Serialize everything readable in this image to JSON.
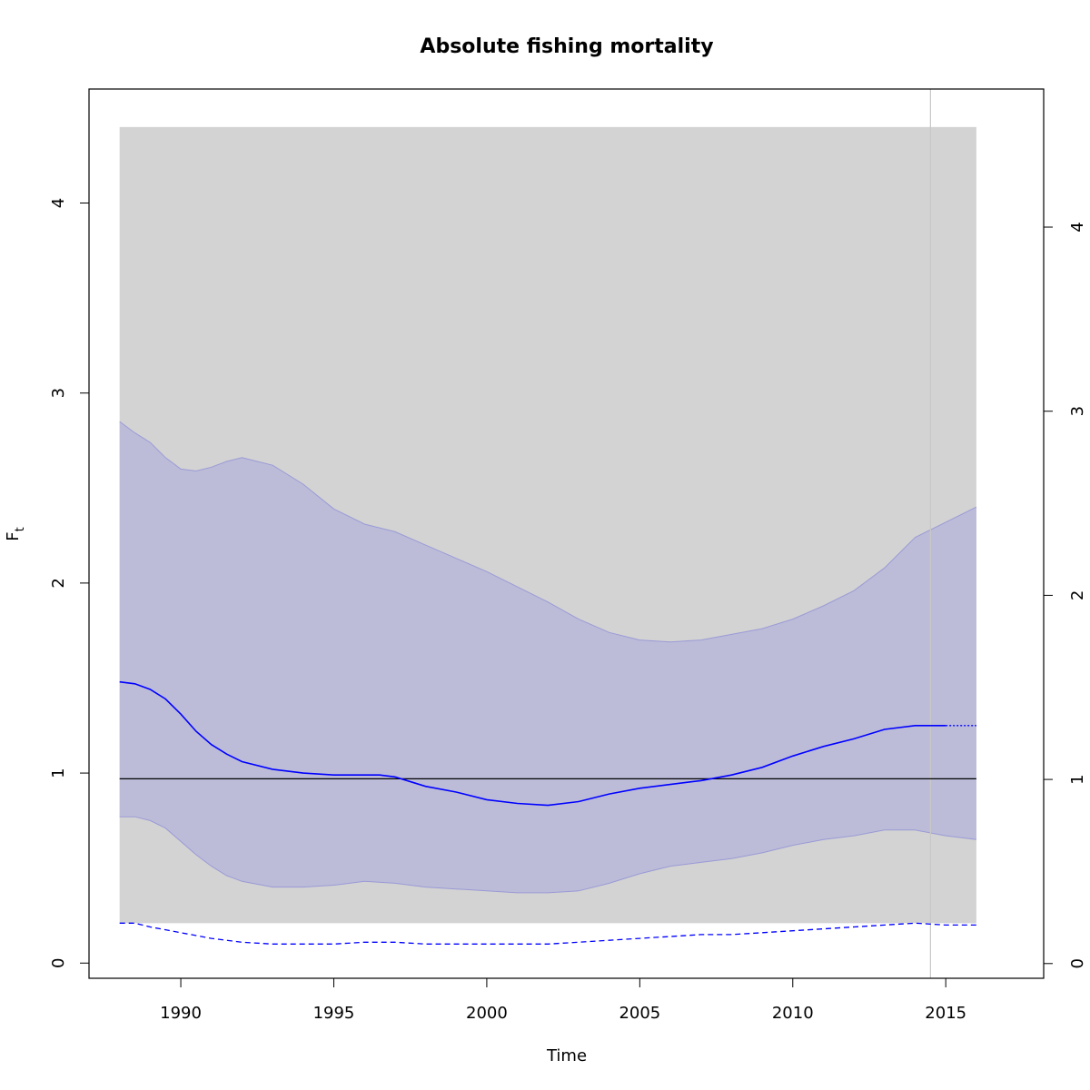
{
  "chart_data": {
    "type": "line",
    "title": "Absolute fishing mortality",
    "xlabel": "Time",
    "ylabel": "F",
    "ylabel_sub": "t",
    "xlim": [
      1987,
      2018.2
    ],
    "ylim": [
      -0.08,
      4.6
    ],
    "ylim_right": [
      -0.08,
      4.75
    ],
    "x_ticks": [
      1990,
      1995,
      2000,
      2005,
      2010,
      2015
    ],
    "y_ticks": [
      0,
      1,
      2,
      3,
      4
    ],
    "y_ticks_right": [
      0,
      1,
      2,
      3,
      4
    ],
    "grid": false,
    "colors": {
      "background_region": "#d3d3d3",
      "ci_band": "#bcbcd9",
      "ci_border": "#9a9ad6",
      "estimate": "#0000ff",
      "reference_line": "#000000",
      "vertical_marker": "#c8c8c8"
    },
    "background_region": {
      "x": [
        1988,
        2016
      ],
      "y": [
        0.21,
        4.4
      ]
    },
    "reference_line": {
      "y": 0.97,
      "x": [
        1988,
        2016
      ]
    },
    "vertical_marker": {
      "x": 2014.5
    },
    "upper_ci": {
      "x": [
        1988,
        1988.5,
        1989,
        1989.5,
        1990,
        1990.5,
        1991,
        1991.5,
        1992,
        1993,
        1994,
        1995,
        1996,
        1997,
        1998,
        1999,
        2000,
        2001,
        2002,
        2003,
        2004,
        2005,
        2006,
        2007,
        2008,
        2009,
        2010,
        2011,
        2012,
        2013,
        2014,
        2015,
        2016
      ],
      "y": [
        2.85,
        2.79,
        2.74,
        2.66,
        2.6,
        2.59,
        2.61,
        2.64,
        2.66,
        2.62,
        2.52,
        2.39,
        2.31,
        2.27,
        2.2,
        2.13,
        2.06,
        1.98,
        1.9,
        1.81,
        1.74,
        1.7,
        1.69,
        1.7,
        1.73,
        1.76,
        1.81,
        1.88,
        1.96,
        2.08,
        2.24,
        2.32,
        2.4
      ]
    },
    "lower_ci": {
      "x": [
        1988,
        1988.5,
        1989,
        1989.5,
        1990,
        1990.5,
        1991,
        1991.5,
        1992,
        1993,
        1994,
        1995,
        1996,
        1997,
        1998,
        1999,
        2000,
        2001,
        2002,
        2003,
        2004,
        2005,
        2006,
        2007,
        2008,
        2009,
        2010,
        2011,
        2012,
        2013,
        2014,
        2015,
        2016
      ],
      "y": [
        0.77,
        0.77,
        0.75,
        0.71,
        0.64,
        0.57,
        0.51,
        0.46,
        0.43,
        0.4,
        0.4,
        0.41,
        0.43,
        0.42,
        0.4,
        0.39,
        0.38,
        0.37,
        0.37,
        0.38,
        0.42,
        0.47,
        0.51,
        0.53,
        0.55,
        0.58,
        0.62,
        0.65,
        0.67,
        0.7,
        0.7,
        0.67,
        0.65
      ]
    },
    "series": [
      {
        "values_x": [
          1988,
          1988.5,
          1989,
          1989.5,
          1990,
          1990.5,
          1991,
          1991.5,
          1992,
          1993,
          1994,
          1995,
          1996,
          1996.5,
          1997,
          1998,
          1999,
          2000,
          2001,
          2002,
          2003,
          2004,
          2005,
          2006,
          2007,
          2008,
          2009,
          2010,
          2011,
          2012,
          2013,
          2014,
          2015
        ],
        "values": [
          1.48,
          1.47,
          1.44,
          1.39,
          1.31,
          1.22,
          1.15,
          1.1,
          1.06,
          1.02,
          1.0,
          0.99,
          0.99,
          0.99,
          0.98,
          0.93,
          0.9,
          0.86,
          0.84,
          0.83,
          0.85,
          0.89,
          0.92,
          0.94,
          0.96,
          0.99,
          1.03,
          1.09,
          1.14,
          1.18,
          1.23,
          1.25,
          1.25
        ],
        "style": "solid"
      },
      {
        "values_x": [
          2015,
          2016
        ],
        "values": [
          1.25,
          1.25
        ],
        "style": "dotted"
      },
      {
        "values_x": [
          1988,
          1988.5,
          1989,
          1990,
          1991,
          1992,
          1993,
          1994,
          1995,
          1996,
          1997,
          1998,
          1999,
          2000,
          2001,
          2002,
          2003,
          2004,
          2005,
          2006,
          2007,
          2008,
          2009,
          2010,
          2011,
          2012,
          2013,
          2014,
          2015,
          2016
        ],
        "values": [
          0.21,
          0.21,
          0.19,
          0.16,
          0.13,
          0.11,
          0.1,
          0.1,
          0.1,
          0.11,
          0.11,
          0.1,
          0.1,
          0.1,
          0.1,
          0.1,
          0.11,
          0.12,
          0.13,
          0.14,
          0.15,
          0.15,
          0.16,
          0.17,
          0.18,
          0.19,
          0.2,
          0.21,
          0.2,
          0.2
        ],
        "style": "dashed"
      }
    ]
  }
}
